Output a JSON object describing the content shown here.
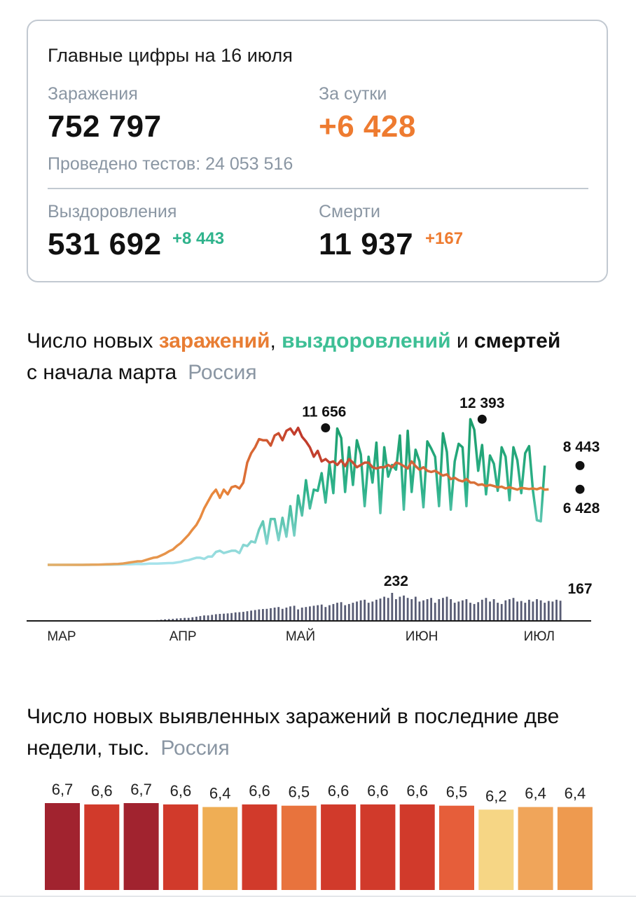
{
  "summary": {
    "title": "Главные цифры на 16 июля",
    "infections_label": "Заражения",
    "infections_value": "752 797",
    "daily_label": "За сутки",
    "daily_value": "+6 428",
    "tests_text": "Проведено тестов: 24 053 516",
    "recoveries_label": "Выздоровления",
    "recoveries_value": "531 692",
    "recoveries_delta": "+8 443",
    "deaths_label": "Смерти",
    "deaths_value": "11 937",
    "deaths_delta": "+167"
  },
  "colors": {
    "infections": "#e87d33",
    "infections_peak": "#c0392b",
    "recoveries_light": "#a8e3ec",
    "recoveries": "#2fb38c",
    "recoveries_dark": "#1a9c6a",
    "deaths": "#3b3f5c",
    "label_gray": "#8a96a3"
  },
  "chart1": {
    "title_part1": "Число новых ",
    "title_infections": "заражений",
    "title_sep1": ", ",
    "title_recoveries": "выздоровлений",
    "title_sep2": " и ",
    "title_deaths": "смертей",
    "title_line2": "с начала марта",
    "region": "Россия"
  },
  "chart2": {
    "title_line1": "Число новых выявленных заражений в последние две",
    "title_line2": "недели, тыс.",
    "region": "Россия"
  },
  "chart_data": [
    {
      "type": "line",
      "title": "Число новых заражений, выздоровлений и смертей с начала марта",
      "x_tick_labels": [
        "МАР",
        "АПР",
        "МАЙ",
        "ИЮН",
        "ИЮЛ"
      ],
      "x_range": [
        "2020-03-01",
        "2020-07-15"
      ],
      "annotations": [
        {
          "label": "11 656",
          "series": "infections",
          "date": "2020-05-11",
          "value": 11656
        },
        {
          "label": "12 393",
          "series": "recoveries",
          "date": "2020-06-20",
          "value": 12393
        },
        {
          "label": "8 443",
          "series": "recoveries",
          "date": "2020-07-15",
          "value": 8443
        },
        {
          "label": "6 428",
          "series": "infections",
          "date": "2020-07-15",
          "value": 6428
        },
        {
          "label": "232",
          "series": "deaths",
          "date": "2020-05-29",
          "value": 232
        },
        {
          "label": "167",
          "series": "deaths",
          "date": "2020-07-15",
          "value": 167
        }
      ],
      "series": [
        {
          "key": "infections",
          "start": "2020-03-01",
          "values": [
            0,
            0,
            0,
            0,
            0,
            0,
            0,
            0,
            0,
            2,
            5,
            10,
            15,
            20,
            30,
            40,
            55,
            65,
            80,
            100,
            150,
            200,
            250,
            300,
            300,
            400,
            500,
            600,
            650,
            800,
            950,
            1150,
            1300,
            1600,
            1850,
            2200,
            2550,
            3000,
            3400,
            4000,
            4800,
            5400,
            6000,
            6400,
            5700,
            6400,
            6000,
            6600,
            6700,
            6500,
            7000,
            8700,
            9500,
            10000,
            10700,
            10600,
            10600,
            10150,
            11000,
            11200,
            10600,
            11400,
            11600,
            11100,
            11656,
            10900,
            10500,
            10000,
            9200,
            9700,
            8800,
            9000,
            8700,
            8800,
            8500,
            8900,
            8400,
            9000,
            8700,
            8300,
            8500,
            8700,
            8700,
            8300,
            8200,
            8300,
            8300,
            8500,
            8300,
            8700,
            8600,
            8400,
            8200,
            8800,
            8400,
            8100,
            8300,
            8000,
            7900,
            8000,
            7800,
            7600,
            7700,
            7300,
            7400,
            7200,
            7100,
            7300,
            7000,
            7000,
            6800,
            6850,
            6700,
            6800,
            6700,
            6600,
            6650,
            6500,
            6600,
            6500,
            6400,
            6550,
            6500,
            6450,
            6500,
            6430,
            6550,
            6400,
            6428
          ]
        },
        {
          "key": "recoveries",
          "start": "2020-03-01",
          "values": [
            0,
            0,
            0,
            0,
            0,
            0,
            0,
            0,
            0,
            0,
            0,
            0,
            5,
            10,
            10,
            15,
            20,
            25,
            30,
            30,
            50,
            50,
            60,
            80,
            60,
            80,
            100,
            110,
            100,
            120,
            130,
            150,
            150,
            200,
            250,
            350,
            400,
            500,
            600,
            600,
            500,
            700,
            700,
            1100,
            1200,
            1000,
            1100,
            1200,
            1200,
            1000,
            1700,
            1600,
            2000,
            1900,
            3000,
            3700,
            1800,
            3900,
            3900,
            2100,
            4000,
            2400,
            5000,
            2500,
            5900,
            4200,
            7200,
            4800,
            6400,
            6300,
            7800,
            5300,
            8600,
            6100,
            11600,
            10800,
            6200,
            10000,
            6800,
            10600,
            9400,
            5000,
            9200,
            7000,
            10400,
            4400,
            10000,
            7500,
            8500,
            8100,
            11000,
            4700,
            11400,
            6200,
            9800,
            8800,
            4900,
            10500,
            9900,
            9200,
            5000,
            11200,
            9600,
            4700,
            8800,
            10300,
            10000,
            5000,
            12393,
            11500,
            8000,
            10200,
            6000,
            9300,
            8600,
            6300,
            10000,
            9200,
            5500,
            10000,
            8900,
            6100,
            9500,
            10100,
            6300,
            3800,
            3700,
            8443
          ]
        },
        {
          "key": "deaths",
          "start": "2020-03-01",
          "values": [
            0,
            0,
            0,
            0,
            0,
            0,
            0,
            0,
            0,
            0,
            0,
            0,
            0,
            0,
            0,
            0,
            0,
            0,
            0,
            0,
            0,
            0,
            0,
            1,
            2,
            3,
            5,
            5,
            7,
            10,
            13,
            15,
            17,
            20,
            22,
            25,
            25,
            30,
            35,
            40,
            45,
            45,
            50,
            55,
            58,
            60,
            62,
            65,
            70,
            72,
            75,
            80,
            85,
            90,
            95,
            98,
            100,
            105,
            110,
            115,
            100,
            110,
            120,
            125,
            95,
            110,
            115,
            120,
            125,
            130,
            135,
            115,
            130,
            140,
            150,
            155,
            130,
            140,
            150,
            160,
            170,
            175,
            150,
            160,
            175,
            185,
            200,
            190,
            232,
            180,
            200,
            210,
            190,
            180,
            200,
            160,
            170,
            180,
            190,
            150,
            180,
            190,
            200,
            180,
            150,
            160,
            170,
            180,
            150,
            140,
            155,
            175,
            190,
            160,
            180,
            150,
            140,
            170,
            180,
            190,
            160,
            165,
            150,
            175,
            160,
            180,
            170,
            150,
            165,
            160,
            175,
            167
          ]
        }
      ]
    },
    {
      "type": "bar",
      "title": "Число новых выявленных заражений в последние две недели, тыс.",
      "categories": [
        "1",
        "2",
        "3",
        "4",
        "5",
        "6",
        "7",
        "8",
        "9",
        "10",
        "11",
        "12",
        "13",
        "14"
      ],
      "values": [
        6.7,
        6.6,
        6.7,
        6.6,
        6.4,
        6.6,
        6.5,
        6.6,
        6.6,
        6.6,
        6.5,
        6.2,
        6.4,
        6.4
      ],
      "value_labels": [
        "6,7",
        "6,6",
        "6,7",
        "6,6",
        "6,4",
        "6,6",
        "6,5",
        "6,6",
        "6,6",
        "6,6",
        "6,5",
        "6,2",
        "6,4",
        "6,4"
      ],
      "bar_colors": [
        "#a1232f",
        "#d13a2b",
        "#a1232f",
        "#d13a2b",
        "#efae55",
        "#d13a2b",
        "#e8733d",
        "#d13a2b",
        "#d13a2b",
        "#d13a2b",
        "#e65e3a",
        "#f6d685",
        "#f0a55a",
        "#ee9a4f"
      ]
    }
  ]
}
